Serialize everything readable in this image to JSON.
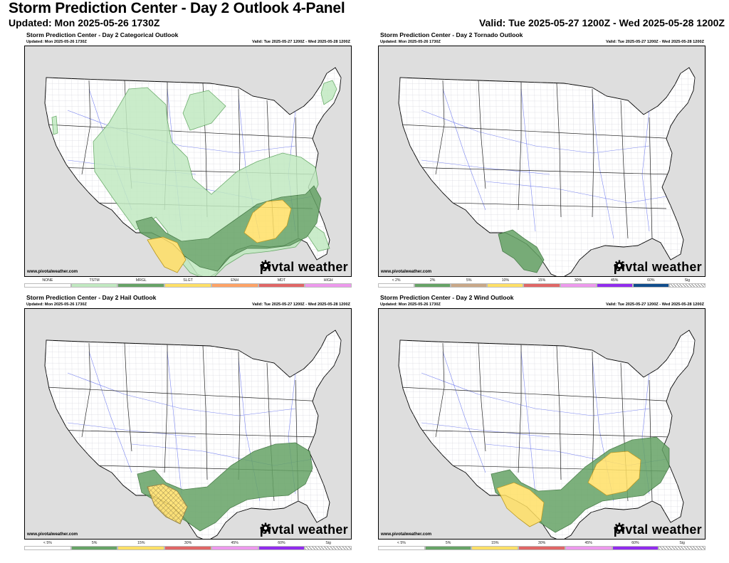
{
  "header": {
    "title": "Storm Prediction Center - Day 2 Outlook 4-Panel",
    "updated": "Updated: Mon 2025-05-26 1730Z",
    "valid": "Valid: Tue 2025-05-27 1200Z - Wed 2025-05-28 1200Z"
  },
  "panels": [
    {
      "title": "Storm Prediction Center - Day 2 Categorical Outlook",
      "updated": "Updated: Mon 2025-05-26 1730Z",
      "valid": "Valid: Tue 2025-05-27 1200Z - Wed 2025-05-28 1200Z",
      "credit": "www.pivotalweather.com",
      "brand_left": "piv",
      "brand_right": "tal weather",
      "brand_icon": "gear-logo-icon",
      "legend": [
        {
          "label": "NONE",
          "color": "#ffffff"
        },
        {
          "label": "TSTM",
          "color": "#c1e9c1"
        },
        {
          "label": "MRGL",
          "color": "#66a366"
        },
        {
          "label": "SLGT",
          "color": "#ffe066"
        },
        {
          "label": "ENH",
          "color": "#ffa366"
        },
        {
          "label": "MDT",
          "color": "#e06666"
        },
        {
          "label": "HIGH",
          "color": "#ee99ee"
        }
      ]
    },
    {
      "title": "Storm Prediction Center - Day 2 Tornado Outlook",
      "updated": "Updated: Mon 2025-05-26 1730Z",
      "valid": "Valid: Tue 2025-05-27 1200Z - Wed 2025-05-28 1200Z",
      "credit": "www.pivotalweather.com",
      "brand_left": "piv",
      "brand_right": "tal weather",
      "brand_icon": "gear-logo-icon",
      "legend": [
        {
          "label": "< 2%",
          "color": "#ffffff"
        },
        {
          "label": "2%",
          "color": "#66a366"
        },
        {
          "label": "5%",
          "color": "#c9a888"
        },
        {
          "label": "10%",
          "color": "#ffe066"
        },
        {
          "label": "15%",
          "color": "#e06666"
        },
        {
          "label": "30%",
          "color": "#ee99ee"
        },
        {
          "label": "45%",
          "color": "#912cee"
        },
        {
          "label": "60%",
          "color": "#114d8c"
        },
        {
          "label": "Sig",
          "color": "hatch"
        }
      ]
    },
    {
      "title": "Storm Prediction Center - Day 2 Hail Outlook",
      "updated": "Updated: Mon 2025-05-26 1730Z",
      "valid": "Valid: Tue 2025-05-27 1200Z - Wed 2025-05-28 1200Z",
      "credit": "www.pivotalweather.com",
      "brand_left": "piv",
      "brand_right": "tal weather",
      "brand_icon": "gear-logo-icon",
      "legend": [
        {
          "label": "< 5%",
          "color": "#ffffff"
        },
        {
          "label": "5%",
          "color": "#66a366"
        },
        {
          "label": "15%",
          "color": "#ffe066"
        },
        {
          "label": "30%",
          "color": "#e06666"
        },
        {
          "label": "45%",
          "color": "#ee99ee"
        },
        {
          "label": "60%",
          "color": "#912cee"
        },
        {
          "label": "Sig",
          "color": "hatch"
        }
      ]
    },
    {
      "title": "Storm Prediction Center - Day 2 Wind Outlook",
      "updated": "Updated: Mon 2025-05-26 1730Z",
      "valid": "Valid: Tue 2025-05-27 1200Z - Wed 2025-05-28 1200Z",
      "credit": "www.pivotalweather.com",
      "brand_left": "piv",
      "brand_right": "tal weather",
      "brand_icon": "gear-logo-icon",
      "legend": [
        {
          "label": "< 5%",
          "color": "#ffffff"
        },
        {
          "label": "5%",
          "color": "#66a366"
        },
        {
          "label": "15%",
          "color": "#ffe066"
        },
        {
          "label": "30%",
          "color": "#e06666"
        },
        {
          "label": "45%",
          "color": "#ee99ee"
        },
        {
          "label": "60%",
          "color": "#912cee"
        },
        {
          "label": "Sig",
          "color": "hatch"
        }
      ]
    }
  ]
}
